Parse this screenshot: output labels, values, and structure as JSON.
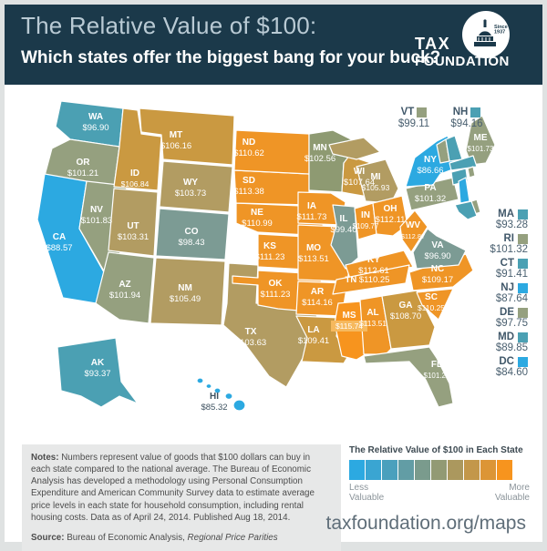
{
  "header": {
    "title": "The Relative Value of $100:",
    "subtitle": "Which states offer the biggest bang for your buck?",
    "logo": {
      "line1": "TAX",
      "line2": "FOUNDATION",
      "since": "Since 1937"
    }
  },
  "palette": {
    "blue": "#2ca9e1",
    "teal": "#4ba0b3",
    "slate": "#7c9b94",
    "sage": "#95a07f",
    "olive": "#8e9a72",
    "tan": "#b29c62",
    "gold": "#ca9941",
    "orange": "#ef9526",
    "deep_orange": "#f7941e",
    "highlight": "#f6b95e",
    "header_bg": "#1b394a",
    "map_label_light": "#ffffff",
    "map_label_dark": "#3e5260"
  },
  "map": {
    "states": {
      "WA": {
        "value": "$96.90",
        "color": "teal"
      },
      "OR": {
        "value": "$101.21",
        "color": "sage"
      },
      "CA": {
        "value": "$88.57",
        "color": "blue"
      },
      "NV": {
        "value": "$101.83",
        "color": "sage"
      },
      "ID": {
        "value": "$106.84",
        "color": "gold"
      },
      "MT": {
        "value": "$106.16",
        "color": "gold"
      },
      "WY": {
        "value": "$103.73",
        "color": "tan"
      },
      "UT": {
        "value": "$103.31",
        "color": "tan"
      },
      "CO": {
        "value": "$98.43",
        "color": "slate"
      },
      "AZ": {
        "value": "$101.94",
        "color": "sage"
      },
      "NM": {
        "value": "$105.49",
        "color": "tan"
      },
      "TX": {
        "value": "$103.63",
        "color": "tan"
      },
      "OK": {
        "value": "$111.23",
        "color": "orange"
      },
      "KS": {
        "value": "$111.23",
        "color": "orange"
      },
      "NE": {
        "value": "$110.99",
        "color": "orange"
      },
      "SD": {
        "value": "$113.38",
        "color": "orange"
      },
      "ND": {
        "value": "$110.62",
        "color": "orange"
      },
      "MN": {
        "value": "$102.56",
        "color": "olive"
      },
      "IA": {
        "value": "$111.73",
        "color": "orange"
      },
      "MO": {
        "value": "$113.51",
        "color": "orange"
      },
      "AR": {
        "value": "$114.16",
        "color": "orange"
      },
      "LA": {
        "value": "$109.41",
        "color": "gold"
      },
      "WI": {
        "value": "$107.64",
        "color": "gold"
      },
      "IL": {
        "value": "$99.40",
        "color": "slate"
      },
      "MI": {
        "value": "$105.93",
        "color": "tan"
      },
      "IN": {
        "value": "$109.77",
        "color": "orange"
      },
      "OH": {
        "value": "$112.11",
        "color": "orange"
      },
      "KY": {
        "value": "$112.61",
        "color": "orange"
      },
      "TN": {
        "value": "$110.25",
        "color": "orange"
      },
      "MS": {
        "value": "$115.74",
        "color": "deep_orange"
      },
      "AL": {
        "value": "$113.51",
        "color": "orange"
      },
      "GA": {
        "value": "$108.70",
        "color": "gold"
      },
      "FL": {
        "value": "$101.21",
        "color": "sage"
      },
      "SC": {
        "value": "$110.25",
        "color": "orange"
      },
      "NC": {
        "value": "$109.17",
        "color": "orange"
      },
      "VA": {
        "value": "$96.90",
        "color": "slate"
      },
      "WV": {
        "value": "$112.87",
        "color": "orange"
      },
      "PA": {
        "value": "$101.32",
        "color": "sage"
      },
      "NY": {
        "value": "$86.66",
        "color": "blue"
      },
      "ME": {
        "value": "$101.73",
        "color": "sage"
      },
      "VT": {
        "value": "$99.11",
        "color": "sage"
      },
      "NH": {
        "value": "$94.16",
        "color": "teal"
      },
      "MA": {
        "value": "$93.28",
        "color": "teal"
      },
      "RI": {
        "value": "$101.32",
        "color": "sage"
      },
      "CT": {
        "value": "$91.41",
        "color": "teal"
      },
      "NJ": {
        "value": "$87.64",
        "color": "blue"
      },
      "DE": {
        "value": "$97.75",
        "color": "sage"
      },
      "MD": {
        "value": "$89.85",
        "color": "teal"
      },
      "DC": {
        "value": "$84.60",
        "color": "blue"
      },
      "AK": {
        "value": "$93.37",
        "color": "teal"
      },
      "HI": {
        "value": "$85.32",
        "color": "blue"
      }
    },
    "callout_order": [
      "VT",
      "NH"
    ],
    "east_list_order": [
      "MA",
      "RI",
      "CT",
      "NJ",
      "DE",
      "MD",
      "DC"
    ]
  },
  "legend": {
    "title": "The Relative Value of $100 in Each State",
    "ramp": [
      "#2ca9e1",
      "#3aa5d2",
      "#4aa0bd",
      "#629da5",
      "#7a9b8d",
      "#929a74",
      "#ab985e",
      "#c3974a",
      "#dc9536",
      "#f7941e"
    ],
    "less": "Less\nValuable",
    "more": "More\nValuable"
  },
  "notes": {
    "label": "Notes:",
    "body": "Numbers represent value of goods that $100 dollars can buy in each state compared to the national average. The Bureau of Economic Analysis has developed a methodology using Personal Consumption Expenditure and American Community Survey data to estimate average price levels in each state for household consumption, including rental housing costs.  Data as of April 24, 2014. Published Aug 18, 2014.",
    "source_label": "Source:",
    "source": "Bureau of Economic Analysis, ",
    "source_em": "Regional Price Parities"
  },
  "footer": {
    "url": "taxfoundation.org/maps"
  }
}
